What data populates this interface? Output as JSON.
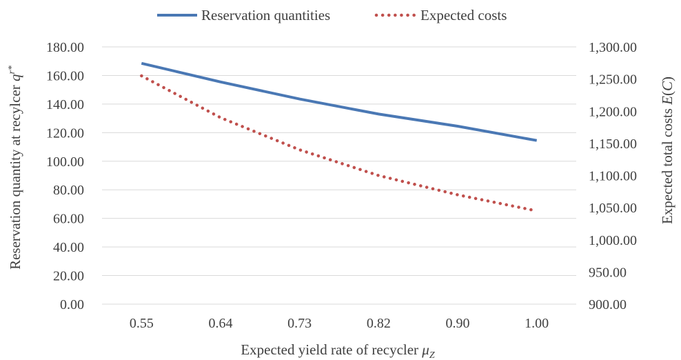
{
  "chart_data": {
    "type": "line",
    "x": [
      "0.55",
      "0.64",
      "0.73",
      "0.82",
      "0.90",
      "1.00"
    ],
    "xlabel": "Expected yield rate of recycler μ_Z",
    "ylabel": "Reservation quantity at recylcer q^r*",
    "y2label": "Expected total costs E(C)",
    "ylim": [
      0,
      180
    ],
    "y2lim": [
      900,
      1300
    ],
    "y_ticks": [
      "0.00",
      "20.00",
      "40.00",
      "60.00",
      "80.00",
      "100.00",
      "120.00",
      "140.00",
      "160.00",
      "180.00"
    ],
    "y2_ticks": [
      "900.00",
      "950.00",
      "1,000.00",
      "1,050.00",
      "1,100.00",
      "1,150.00",
      "1,200.00",
      "1,250.00",
      "1,300.00"
    ],
    "grid": true,
    "legend_position": "top",
    "series": [
      {
        "name": "Reservation quantities",
        "axis": "left",
        "style": "solid",
        "color": "#4a78b4",
        "values": [
          168.5,
          155.5,
          143.5,
          133.0,
          124.5,
          114.5
        ]
      },
      {
        "name": "Expected costs",
        "axis": "right",
        "style": "dotted",
        "color": "#c0504d",
        "values": [
          1255,
          1190,
          1140,
          1100,
          1070,
          1045
        ]
      }
    ]
  }
}
